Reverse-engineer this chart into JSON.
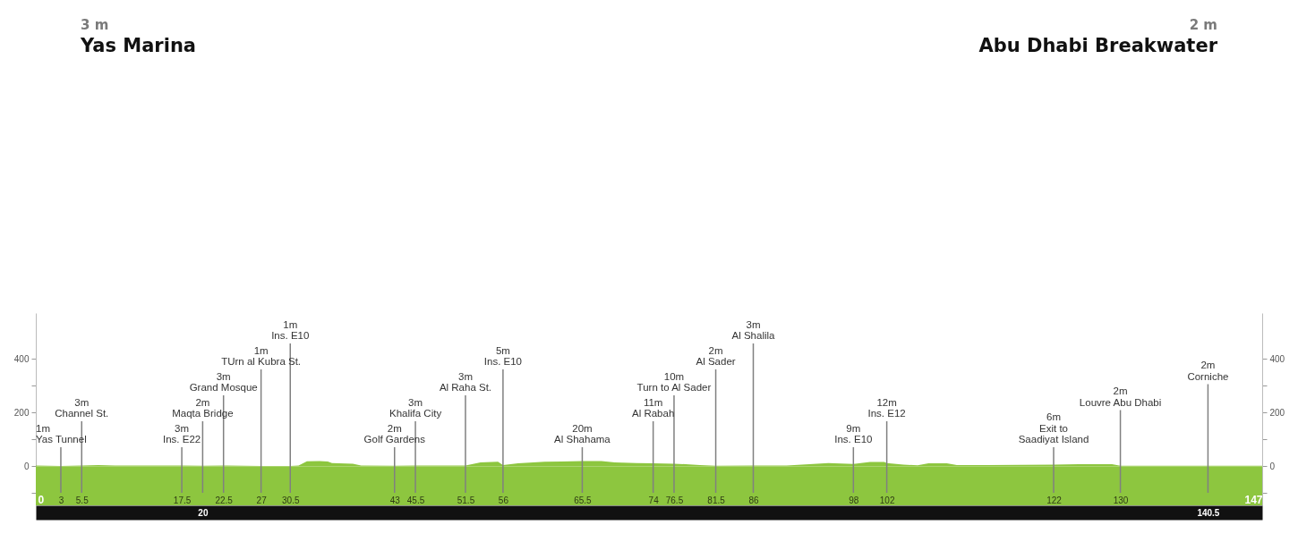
{
  "chart_data": {
    "type": "area",
    "annotations": [
      "3 m",
      "Yas Marina",
      "2 m",
      "Abu Dhabi Breakwater"
    ],
    "ref_lines": [
      {
        "axis": "x",
        "value": 3,
        "label": "1m\nYas Tunnel"
      },
      {
        "axis": "x",
        "value": 5.5,
        "label": "3m\nChannel St."
      },
      {
        "axis": "x",
        "value": 17.5,
        "label": "3m\nIns. E22"
      },
      {
        "axis": "x",
        "value": 20,
        "label": "2m\nMaqta Bridge"
      },
      {
        "axis": "x",
        "value": 22.5,
        "label": "3m\nGrand Mosque"
      },
      {
        "axis": "x",
        "value": 27,
        "label": "1m\nTUrn al Kubra St."
      },
      {
        "axis": "x",
        "value": 30.5,
        "label": "1m\nIns. E10"
      },
      {
        "axis": "x",
        "value": 43,
        "label": "2m\nGolf Gardens"
      },
      {
        "axis": "x",
        "value": 45.5,
        "label": "3m\nKhalifa City"
      },
      {
        "axis": "x",
        "value": 51.5,
        "label": "3m\nAl Raha St."
      },
      {
        "axis": "x",
        "value": 56,
        "label": "5m\nIns. E10"
      },
      {
        "axis": "x",
        "value": 65.5,
        "label": "20m\nAl Shahama"
      },
      {
        "axis": "x",
        "value": 74,
        "label": "11m\nAl Rabah"
      },
      {
        "axis": "x",
        "value": 76.5,
        "label": "10m\nTurn to Al Sader"
      },
      {
        "axis": "x",
        "value": 81.5,
        "label": "2m\nAl Sader"
      },
      {
        "axis": "x",
        "value": 86,
        "label": "3m\nAl Shalila"
      },
      {
        "axis": "x",
        "value": 98,
        "label": "9m\nIns. E10"
      },
      {
        "axis": "x",
        "value": 102,
        "label": "12m\nIns. E12"
      },
      {
        "axis": "x",
        "value": 122,
        "label": "6m\nExit to\nSaadiyat Island"
      },
      {
        "axis": "x",
        "value": 130,
        "label": "2m\nLouvre Abu Dhabi"
      },
      {
        "axis": "x",
        "value": 140.5,
        "label": "2m\nCorniche"
      }
    ],
    "bands": [
      {
        "axis": "y",
        "from": -145,
        "to": 0,
        "color": "#8dc63f"
      }
    ],
    "x": [
      0,
      3,
      5.5,
      7.5,
      9.5,
      17.5,
      20,
      22.5,
      27,
      30.5,
      31.5,
      32.5,
      34,
      35,
      35.5,
      38,
      39,
      43,
      45.5,
      51.5,
      53.3,
      55.4,
      56,
      57.8,
      61,
      63,
      65.5,
      67.8,
      69.4,
      72,
      74,
      76.5,
      79.6,
      81.5,
      86,
      90,
      95,
      98,
      100,
      101.7,
      102,
      104,
      105.7,
      107,
      109.2,
      110.4,
      114,
      122,
      125,
      129,
      130,
      135,
      140.5,
      147
    ],
    "values": [
      3,
      1,
      3,
      5,
      3,
      3,
      2,
      3,
      1,
      1,
      3,
      19,
      20,
      18,
      12,
      10,
      3,
      2,
      3,
      3,
      15,
      17,
      5,
      11,
      17,
      18,
      20,
      20,
      15,
      12,
      11,
      10,
      5,
      2,
      3,
      3,
      12,
      9,
      16,
      16,
      12,
      6,
      4,
      11,
      11,
      5,
      5,
      6,
      8,
      8,
      2,
      2,
      2,
      2
    ],
    "color": "#8dc63f",
    "xlim": [
      0,
      147
    ],
    "xticks": [
      0,
      3,
      5.5,
      17.5,
      22.5,
      27,
      30.5,
      43,
      45.5,
      51.5,
      56,
      65.5,
      74,
      76.5,
      81.5,
      86,
      98,
      102,
      122,
      130,
      147
    ],
    "x2lim": [
      0,
      147
    ],
    "x2ticks": [
      20,
      140.5
    ],
    "ylim": [
      -145,
      570
    ],
    "yticks": [
      {
        "value": -100,
        "label": null
      },
      0,
      {
        "value": 100,
        "label": null
      },
      200,
      {
        "value": 300,
        "label": null
      },
      400
    ],
    "y2lim": [
      -145,
      570
    ],
    "y2ticks": [
      {
        "value": -100,
        "label": null
      },
      0,
      {
        "value": 100,
        "label": null
      },
      200,
      {
        "value": 300,
        "label": null
      },
      400
    ]
  }
}
